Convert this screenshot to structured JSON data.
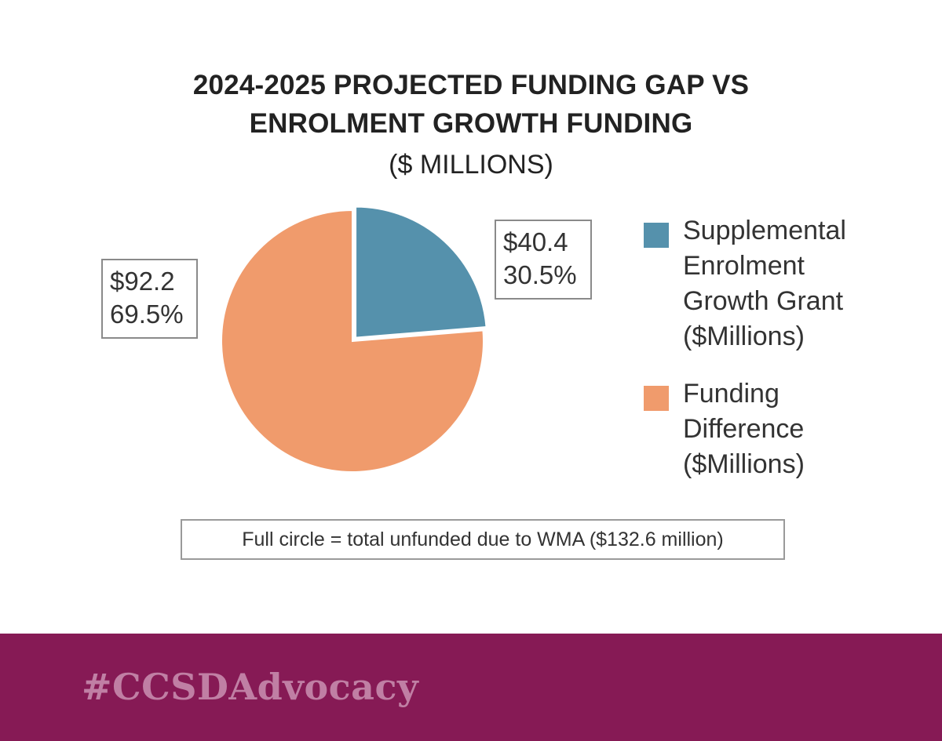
{
  "chart_data": {
    "type": "pie",
    "title_lines": [
      "2024-2025 PROJECTED FUNDING GAP VS",
      "ENROLMENT GROWTH FUNDING"
    ],
    "subtitle": "($ MILLIONS)",
    "slices": [
      {
        "legend_label": "Supplemental Enrolment Growth Grant ($Millions)",
        "legend_lines": [
          "Supplemental",
          "Enrolment",
          "Growth Grant",
          "($Millions)"
        ],
        "value": 40.4,
        "value_label": "$40.4",
        "percent_label": "30.5%",
        "color": "#5591ac",
        "exploded": true
      },
      {
        "legend_label": "Funding Difference ($Millions)",
        "legend_lines": [
          "Funding",
          "Difference",
          "($Millions)"
        ],
        "value": 92.2,
        "value_label": "$92.2",
        "percent_label": "69.5%",
        "color": "#f09b6c",
        "exploded": false
      }
    ],
    "legend_placement": "right",
    "note": "Full circle = total unfunded due to WMA ($132.6 million)"
  },
  "footer": {
    "hashtag": "#CCSDAdvocacy",
    "background_color": "#861a55"
  }
}
